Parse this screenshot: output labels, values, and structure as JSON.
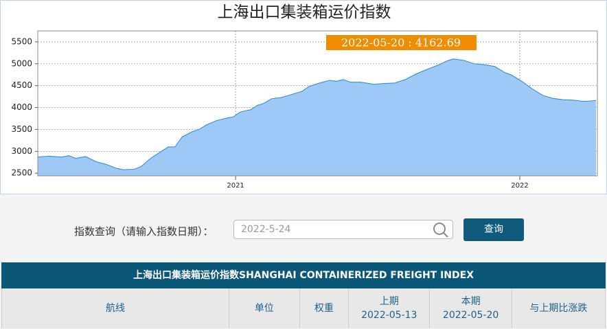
{
  "chart_data": {
    "type": "area",
    "title": "上海出口集装箱运价指数",
    "tooltip": "2022-05-20 : 4162.69",
    "x": [
      2020.304,
      2020.341,
      2020.389,
      2020.413,
      2020.437,
      2020.473,
      2020.51,
      2020.546,
      2020.582,
      2020.606,
      2020.643,
      2020.667,
      2020.703,
      2020.739,
      2020.763,
      2020.787,
      2020.812,
      2020.848,
      2020.872,
      2020.896,
      2020.932,
      2020.969,
      2020.993,
      2021.017,
      2021.053,
      2021.077,
      2021.101,
      2021.126,
      2021.162,
      2021.198,
      2021.234,
      2021.258,
      2021.295,
      2021.331,
      2021.355,
      2021.379,
      2021.403,
      2021.44,
      2021.488,
      2021.524,
      2021.56,
      2021.597,
      2021.633,
      2021.669,
      2021.717,
      2021.742,
      2021.766,
      2021.802,
      2021.838,
      2021.874,
      2021.911,
      2021.947,
      2021.971,
      2022.007,
      2022.043,
      2022.08,
      2022.116,
      2022.152,
      2022.188,
      2022.225,
      2022.249,
      2022.268
    ],
    "values": [
      2870,
      2890,
      2870,
      2900,
      2840,
      2880,
      2760,
      2700,
      2610,
      2580,
      2590,
      2650,
      2850,
      3000,
      3100,
      3100,
      3330,
      3450,
      3500,
      3600,
      3700,
      3760,
      3790,
      3900,
      3950,
      4050,
      4100,
      4200,
      4230,
      4300,
      4370,
      4480,
      4560,
      4620,
      4600,
      4640,
      4580,
      4580,
      4530,
      4550,
      4560,
      4640,
      4760,
      4860,
      4980,
      5060,
      5110,
      5080,
      5000,
      4980,
      4940,
      4800,
      4740,
      4600,
      4430,
      4280,
      4210,
      4180,
      4170,
      4140,
      4150,
      4162.69
    ],
    "color": "#9ec9f7",
    "line_color": "#2a87c8",
    "xlim": [
      2020.304,
      2022.273
    ],
    "xticks": [
      {
        "value": 2021,
        "label": "2021"
      },
      {
        "value": 2022,
        "label": "2022"
      }
    ],
    "ylim": [
      2440,
      5750
    ],
    "yticks": [
      2500,
      3000,
      3500,
      4000,
      4500,
      5000,
      5500
    ],
    "grid": true
  },
  "search": {
    "label": "指数查询（请输入指数日期）：",
    "input": "2022-5-24",
    "button": "查询"
  },
  "table": {
    "title": "上海出口集装箱运价指数SHANGHAI CONTAINERIZED FREIGHT INDEX",
    "headers": [
      "航线",
      "单位",
      "权重",
      [
        "上期",
        "2022-05-13"
      ],
      [
        "本期",
        "2022-05-20"
      ],
      "与上期比涨跌"
    ]
  }
}
